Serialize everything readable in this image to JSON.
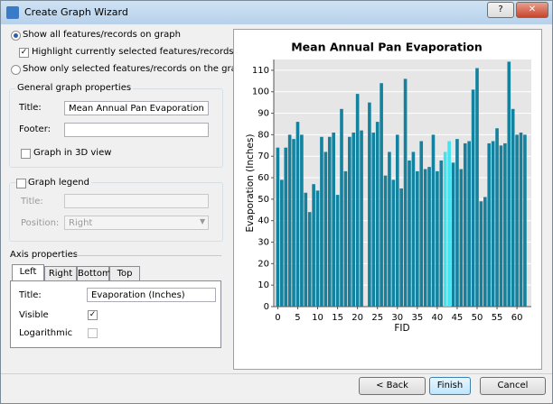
{
  "window": {
    "title": "Create Graph Wizard"
  },
  "options": {
    "show_all": "Show all features/records on graph",
    "highlight": "Highlight currently selected features/records",
    "show_selected": "Show only selected features/records on the graph"
  },
  "general": {
    "heading": "General graph properties",
    "title_label": "Title:",
    "title_value": "Mean Annual Pan Evaporation",
    "footer_label": "Footer:",
    "graph_3d": "Graph in 3D view"
  },
  "legend": {
    "label": "Graph legend",
    "title_label": "Title:",
    "position_label": "Position:",
    "position_value": "Right"
  },
  "axis": {
    "heading": "Axis properties",
    "tabs": [
      "Left",
      "Right",
      "Bottom",
      "Top"
    ],
    "title_label": "Title:",
    "title_value": "Evaporation (Inches)",
    "visible_label": "Visible",
    "log_label": "Logarithmic"
  },
  "buttons": [
    "< Back",
    "Finish",
    "Cancel"
  ],
  "chart_data": {
    "type": "bar",
    "title": "Mean Annual Pan Evaporation",
    "x_label": "FID",
    "y_label": "Evaporation (Inches)",
    "x": [
      0,
      1,
      2,
      3,
      4,
      5,
      6,
      7,
      8,
      9,
      10,
      11,
      12,
      13,
      14,
      15,
      16,
      17,
      18,
      19,
      20,
      21,
      22,
      23,
      24,
      25,
      26,
      27,
      28,
      29,
      30,
      31,
      32,
      33,
      34,
      35,
      36,
      37,
      38,
      39,
      40,
      41,
      42,
      43,
      44,
      45,
      46,
      47,
      48,
      49,
      50,
      51,
      52,
      53,
      54,
      55,
      56,
      57,
      58,
      59,
      60,
      61,
      62
    ],
    "values": [
      74,
      59,
      74,
      80,
      78,
      86,
      80,
      53,
      44,
      57,
      54,
      79,
      72,
      79,
      81,
      52,
      92,
      63,
      79,
      81,
      99,
      82,
      null,
      95,
      81,
      86,
      104,
      61,
      72,
      59,
      80,
      55,
      106,
      68,
      72,
      63,
      77,
      64,
      65,
      80,
      63,
      68,
      72,
      77,
      67,
      78,
      64,
      76,
      77,
      101,
      111,
      49,
      51,
      76,
      77,
      83,
      75,
      76,
      114,
      92,
      80,
      81,
      80
    ],
    "color": "#13829f",
    "highlighted": [
      42,
      43
    ],
    "highlight_color": "#3ee6f2",
    "xlim": [
      -1,
      63.6
    ],
    "xticks": [
      0,
      5,
      10,
      15,
      20,
      25,
      30,
      35,
      40,
      45,
      50,
      55,
      60
    ],
    "ylim": [
      0,
      115
    ],
    "yticks": [
      0,
      10,
      20,
      30,
      40,
      50,
      60,
      70,
      80,
      90,
      100,
      110
    ],
    "grid": true
  }
}
